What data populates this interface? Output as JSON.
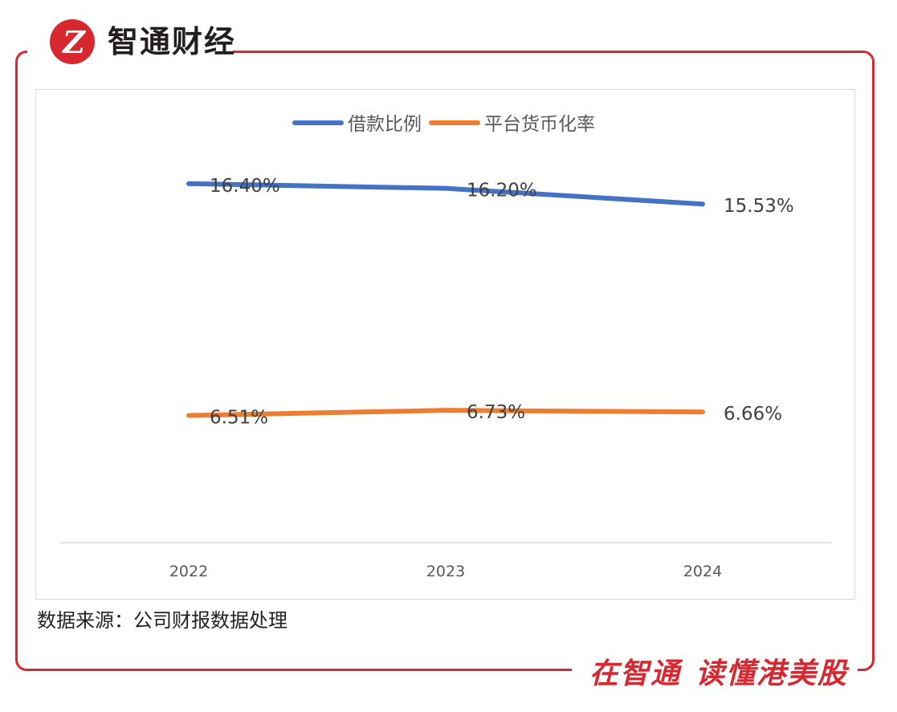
{
  "brand": {
    "logo_mark": "Z",
    "name": "智通财经",
    "accent_color": "#d7282f"
  },
  "source_note": "数据来源：公司财报数据处理",
  "slogan": {
    "part1": "在智通",
    "part2": "读懂港美股"
  },
  "chart_data": {
    "type": "line",
    "title": "",
    "xlabel": "",
    "ylabel": "",
    "categories": [
      "2022",
      "2023",
      "2024"
    ],
    "ylim": [
      0,
      20
    ],
    "grid": false,
    "legend_position": "top-center",
    "series": [
      {
        "name": "借款比例",
        "values": [
          16.4,
          16.2,
          15.53
        ],
        "labels": [
          "16.40%",
          "16.20%",
          "15.53%"
        ],
        "color": "#4472c4"
      },
      {
        "name": "平台货币化率",
        "values": [
          6.51,
          6.73,
          6.66
        ],
        "labels": [
          "6.51%",
          "6.73%",
          "6.66%"
        ],
        "color": "#ed7d31"
      }
    ]
  }
}
